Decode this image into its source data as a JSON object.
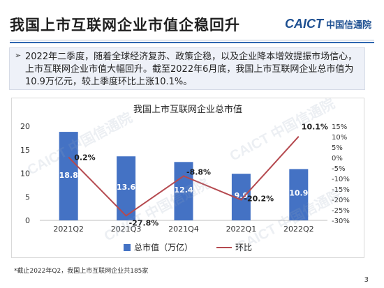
{
  "header": {
    "title": "我国上市互联网企业市值企稳回升",
    "logo_mark": "CAICT",
    "logo_cn": "中国信通院"
  },
  "summary": {
    "bullet": "➢",
    "text": "2022年二季度，随着全球经济复苏、政策企稳，以及企业降本增效提振市场信心，上市互联网企业市值大幅回升。截至2022年6月底，我国上市互联网企业总市值为10.9万亿元，较上季度环比上涨10.1%。"
  },
  "watermark": {
    "text": "CAICT 中国信通院"
  },
  "footnote": "*截止2022年Q2，我国上市互联网企业共185家",
  "page_number": "3",
  "chart_data": {
    "type": "bar",
    "title": "我国上市互联网企业总市值",
    "categories": [
      "2021Q2",
      "2021Q3",
      "2021Q4",
      "2022Q1",
      "2022Q2"
    ],
    "series": [
      {
        "name": "总市值（万亿）",
        "type": "bar",
        "axis": "left",
        "values": [
          18.8,
          13.6,
          12.4,
          9.9,
          10.9
        ],
        "labels": [
          "18.8",
          "13.6",
          "12.4",
          "9.9",
          "10.9"
        ]
      },
      {
        "name": "环比",
        "type": "line",
        "axis": "right",
        "values": [
          0.2,
          -27.8,
          -8.8,
          -20.2,
          10.1
        ],
        "labels": [
          "0.2%",
          "-27.8%",
          "-8.8%",
          "-20.2%",
          "10.1%"
        ]
      }
    ],
    "y_left": {
      "min": 0,
      "max": 20,
      "ticks": [
        "0",
        "5",
        "10",
        "15",
        "20"
      ]
    },
    "y_right": {
      "min": -30,
      "max": 15,
      "ticks": [
        "-30%",
        "-25%",
        "-20%",
        "-15%",
        "-10%",
        "-5%",
        "0%",
        "5%",
        "10%",
        "15%"
      ]
    },
    "colors": {
      "bar": "#4472c4",
      "line": "#b5494f",
      "bar_label": "#ffffff"
    },
    "grid": false,
    "legend_position": "bottom"
  }
}
